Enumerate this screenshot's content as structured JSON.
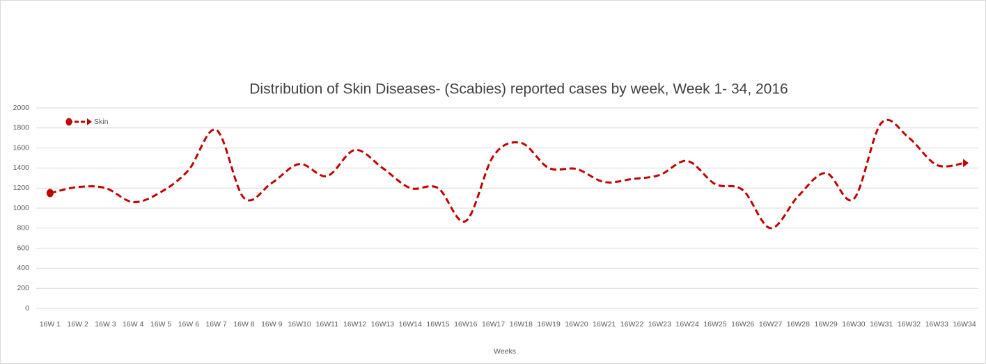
{
  "chart_data": {
    "type": "line",
    "title": "Distribution of  Skin Diseases- (Scabies) reported cases by week, Week 1- 34, 2016",
    "x_label": "Weeks",
    "categories": [
      "16W 1",
      "16W 2",
      "16W 3",
      "16W 4",
      "16W 5",
      "16W 6",
      "16W 7",
      "16W 8",
      "16W 9",
      "16W10",
      "16W11",
      "16W12",
      "16W13",
      "16W14",
      "16W15",
      "16W16",
      "16W17",
      "16W18",
      "16W19",
      "16W20",
      "16W21",
      "16W22",
      "16W23",
      "16W24",
      "16W25",
      "16W26",
      "16W27",
      "16W28",
      "16W29",
      "16W30",
      "16W31",
      "16W32",
      "16W33",
      "16W34"
    ],
    "series": [
      {
        "name": "Skin",
        "color": "#c00000",
        "values": [
          1150,
          1210,
          1200,
          1060,
          1160,
          1380,
          1780,
          1100,
          1250,
          1440,
          1320,
          1580,
          1400,
          1200,
          1200,
          870,
          1520,
          1650,
          1400,
          1390,
          1260,
          1290,
          1330,
          1470,
          1240,
          1180,
          800,
          1120,
          1350,
          1090,
          1850,
          1700,
          1430,
          1450
        ]
      }
    ],
    "ylim": [
      0,
      2000
    ],
    "yticks": [
      0,
      200,
      400,
      600,
      800,
      1000,
      1200,
      1400,
      1600,
      1800,
      2000
    ],
    "grid": true,
    "smooth": true,
    "dashed": true,
    "legend": "top-left"
  }
}
